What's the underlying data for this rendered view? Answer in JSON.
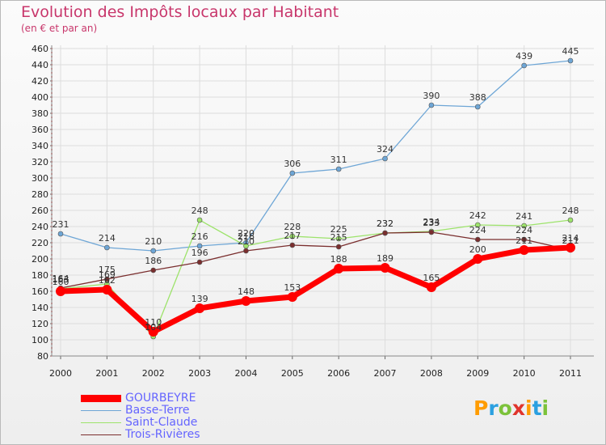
{
  "title": "Evolution des Impôts locaux par Habitant",
  "subtitle": "(en € et par an)",
  "logo": {
    "text": [
      "P",
      "r",
      "o",
      "x",
      "i",
      "t",
      "i"
    ],
    "colors": [
      "#ff9c00",
      "#2ba0e0",
      "#7cc23a",
      "#e0342c",
      "#ff9c00",
      "#2ba0e0",
      "#7cc23a"
    ]
  },
  "chart_data": {
    "type": "line",
    "title": "Evolution des Impôts locaux par Habitant",
    "subtitle": "(en € et par an)",
    "xlabel": "",
    "ylabel": "",
    "x": [
      "2000",
      "2001",
      "2002",
      "2003",
      "2004",
      "2005",
      "2006",
      "2007",
      "2008",
      "2009",
      "2010",
      "2011"
    ],
    "ylim": [
      80,
      460
    ],
    "yticks": [
      80,
      100,
      120,
      140,
      160,
      180,
      200,
      220,
      240,
      260,
      280,
      300,
      320,
      340,
      360,
      380,
      400,
      420,
      440,
      460
    ],
    "grid": true,
    "legend_position": "bottom-left",
    "series": [
      {
        "name": "GOURBEYRE",
        "color": "#ff0000",
        "width": 7,
        "marker": 6,
        "values": [
          160,
          162,
          110,
          139,
          148,
          153,
          188,
          189,
          165,
          200,
          211,
          214
        ]
      },
      {
        "name": "Basse-Terre",
        "color": "#6ea6d6",
        "width": 1.3,
        "marker": 3,
        "values": [
          231,
          214,
          210,
          216,
          220,
          306,
          311,
          324,
          390,
          388,
          439,
          445
        ]
      },
      {
        "name": "Saint-Claude",
        "color": "#9de36b",
        "width": 1.3,
        "marker": 3,
        "values": [
          163,
          169,
          104,
          248,
          216,
          228,
          225,
          232,
          234,
          242,
          241,
          248
        ]
      },
      {
        "name": "Trois-Rivières",
        "color": "#7a2e2e",
        "width": 1.3,
        "marker": 3,
        "values": [
          164,
          175,
          186,
          196,
          210,
          217,
          215,
          232,
          233,
          224,
          224,
          211
        ]
      }
    ]
  }
}
